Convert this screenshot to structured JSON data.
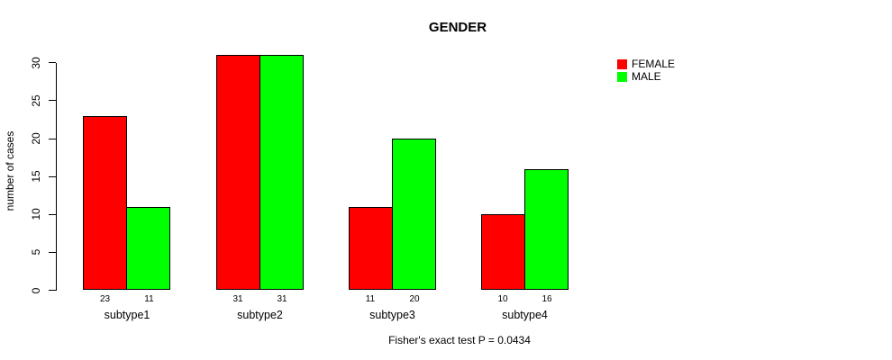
{
  "chart_data": {
    "type": "bar",
    "title": "GENDER",
    "ylabel": "number of cases",
    "xlabel": "",
    "caption": "Fisher's exact test P = 0.0434",
    "categories": [
      "subtype1",
      "subtype2",
      "subtype3",
      "subtype4"
    ],
    "series": [
      {
        "name": "FEMALE",
        "color": "#ff0000",
        "values": [
          23,
          31,
          11,
          10
        ]
      },
      {
        "name": "MALE",
        "color": "#00ff00",
        "values": [
          11,
          31,
          20,
          16
        ]
      }
    ],
    "yticks": [
      0,
      5,
      10,
      15,
      20,
      25,
      30
    ],
    "ylim": [
      0,
      31
    ],
    "bar_value_labels_shown": true,
    "legend_position": "top-right",
    "grid": false,
    "axis_color": "#000000",
    "background_color": "#ffffff"
  }
}
